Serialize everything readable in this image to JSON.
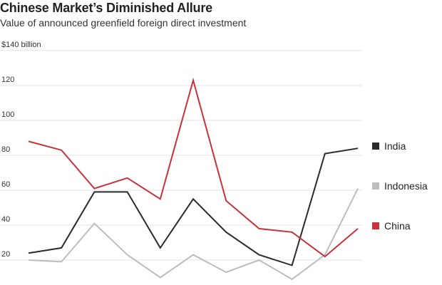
{
  "title": "Chinese Market’s Diminished Allure",
  "subtitle": "Value of announced greenfield foreign direct investment",
  "chart_data": {
    "type": "line",
    "title": "Chinese Market’s Diminished Allure",
    "subtitle": "Value of announced greenfield foreign direct investment",
    "unit_label": "$140 billion",
    "y_ticks": [
      {
        "value": 140,
        "label": "$140 billion"
      },
      {
        "value": 120,
        "label": "120"
      },
      {
        "value": 100,
        "label": "100"
      },
      {
        "value": 80,
        "label": "80"
      },
      {
        "value": 60,
        "label": "60"
      },
      {
        "value": 40,
        "label": "40"
      },
      {
        "value": 20,
        "label": "20"
      }
    ],
    "ylim": [
      10,
      140
    ],
    "x": [
      1,
      2,
      3,
      4,
      5,
      6,
      7,
      8,
      9,
      10,
      11
    ],
    "grid": true,
    "legend_position": "right",
    "series": [
      {
        "name": "India",
        "color": "#2b2b2b",
        "values": [
          24,
          27,
          59,
          59,
          27,
          55,
          36,
          23,
          17,
          81,
          84
        ]
      },
      {
        "name": "Indonesia",
        "color": "#bdbdbd",
        "values": [
          20,
          19,
          41,
          23,
          10,
          23,
          13,
          20,
          9,
          23,
          61
        ]
      },
      {
        "name": "China",
        "color": "#c8323c",
        "values": [
          88,
          83,
          61,
          67,
          55,
          123,
          54,
          38,
          36,
          22,
          38
        ]
      }
    ]
  }
}
